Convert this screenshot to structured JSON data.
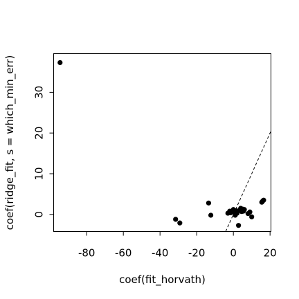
{
  "chart_data": {
    "type": "scatter",
    "xlabel": "coef(fit_horvath)",
    "ylabel": "coef(ridge_fit, s = which_min_err)",
    "xlim": [
      -98,
      20.5
    ],
    "ylim": [
      -4.2,
      39.5
    ],
    "xticks": [
      -80,
      -60,
      -40,
      -20,
      0,
      20
    ],
    "yticks": [
      0,
      10,
      20,
      30
    ],
    "grid": false,
    "legend": "none",
    "reference_line": {
      "style": "dashed",
      "slope": 1,
      "intercept": 0
    },
    "x": [
      -94.5,
      -31.5,
      -29.2,
      -13.5,
      -12.3,
      -3.0,
      -2.0,
      -1.5,
      0.0,
      0.5,
      1.0,
      1.5,
      2.0,
      2.8,
      3.5,
      4.0,
      4.5,
      5.0,
      5.5,
      6.0,
      8.0,
      9.0,
      10.0,
      15.5,
      16.0,
      16.5
    ],
    "y": [
      37.3,
      -1.2,
      -2.1,
      2.8,
      -0.2,
      0.3,
      0.8,
      0.4,
      1.2,
      0.5,
      -0.2,
      0.9,
      0.3,
      -2.7,
      1.1,
      1.5,
      0.7,
      1.3,
      0.8,
      1.2,
      0.2,
      0.6,
      -0.6,
      3.0,
      3.3,
      3.5
    ]
  }
}
